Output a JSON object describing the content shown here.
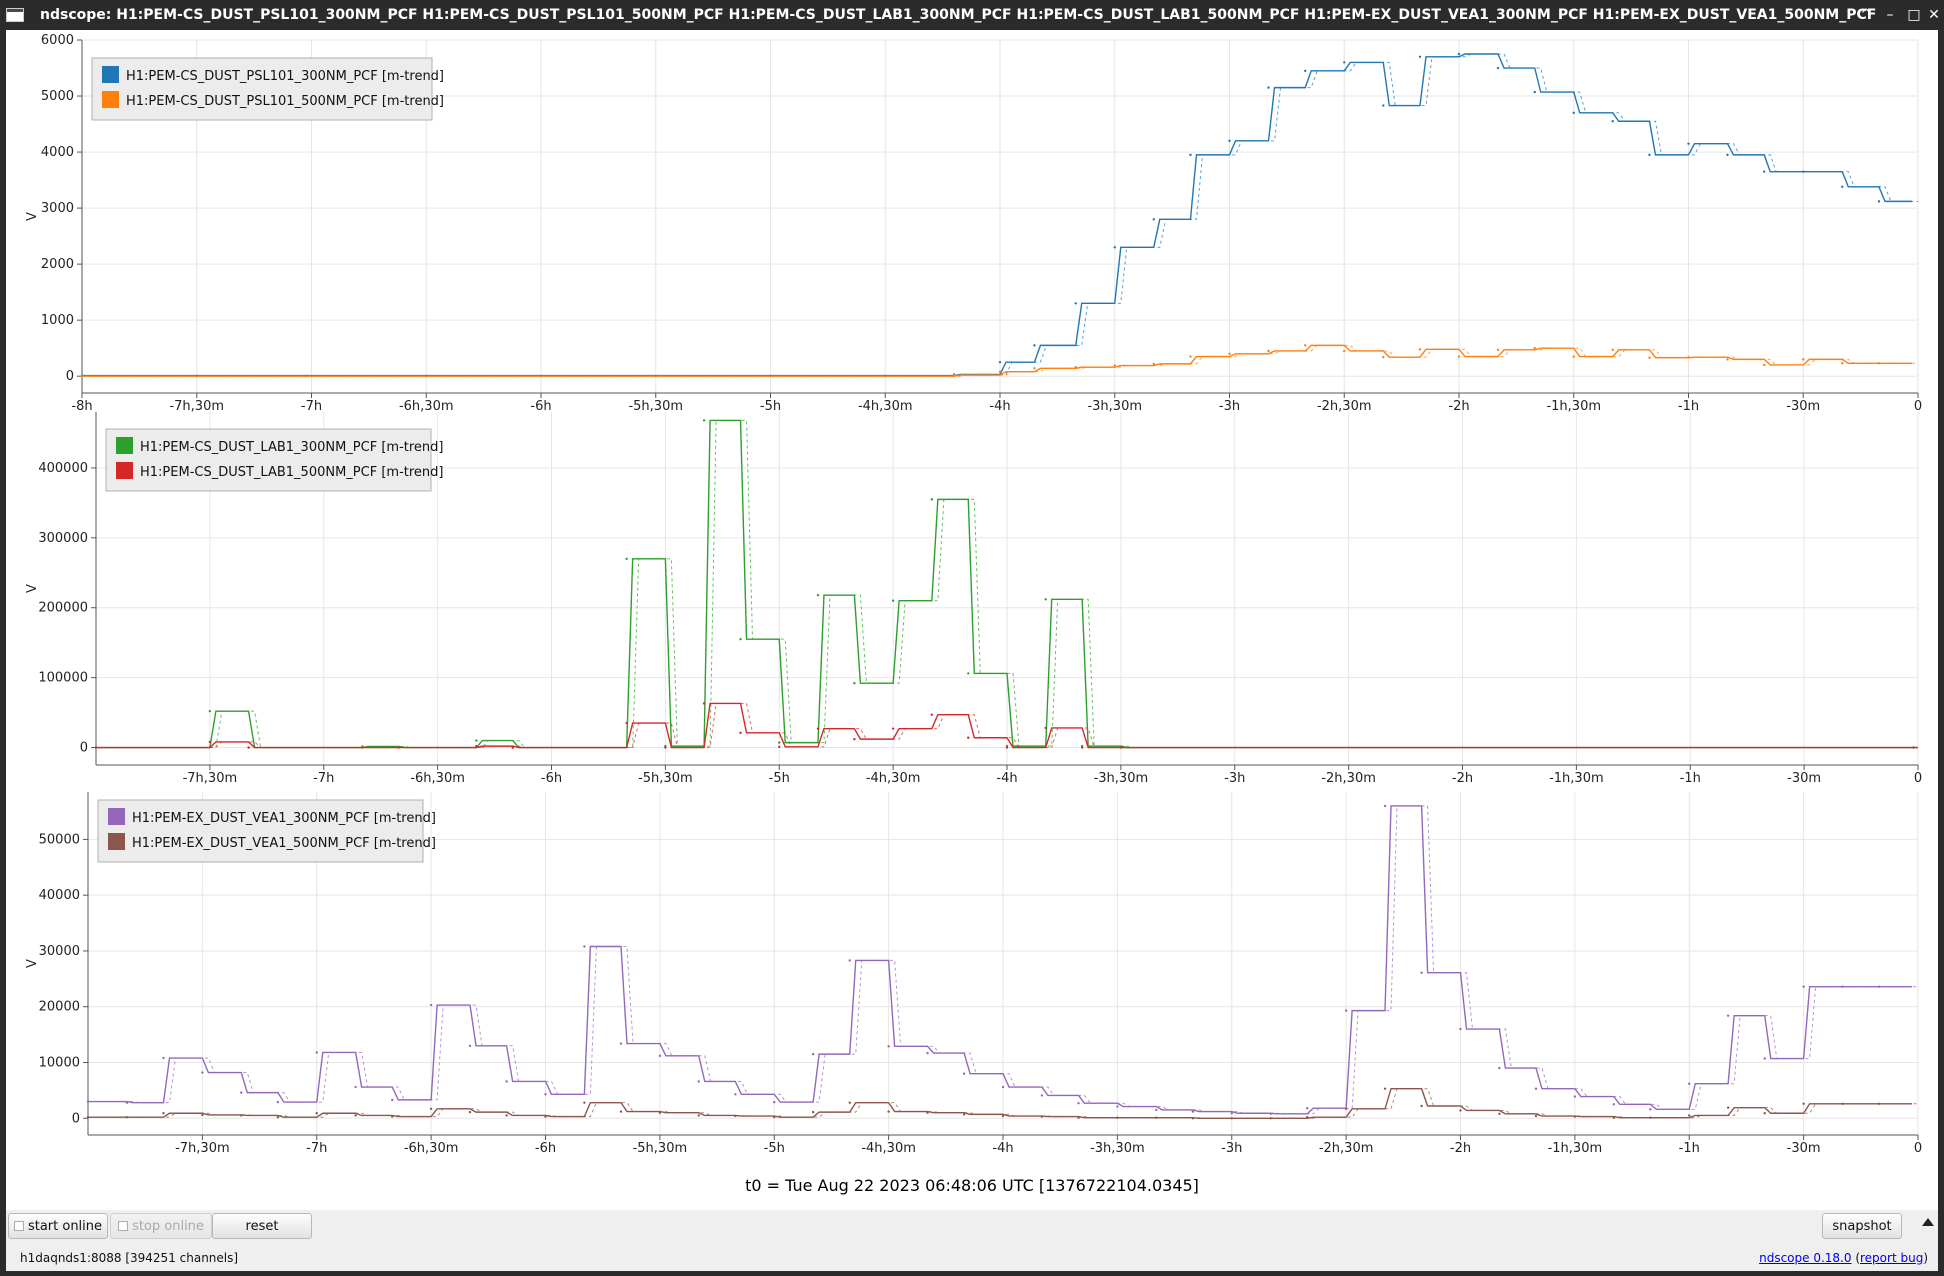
{
  "window": {
    "title": "ndscope: H1:PEM-CS_DUST_PSL101_300NM_PCF H1:PEM-CS_DUST_PSL101_500NM_PCF H1:PEM-CS_DUST_LAB1_300NM_PCF H1:PEM-CS_DUST_LAB1_500NM_PCF H1:PEM-EX_DUST_VEA1_300NM_PCF H1:PEM-EX_DUST_VEA1_500NM_PCF",
    "buttons": [
      "^",
      "–",
      "□",
      "✕"
    ]
  },
  "t0_label": "t0 = Tue Aug 22 2023 06:48:06 UTC [1376722104.0345]",
  "controls": {
    "start_online": "start online",
    "stop_online": "stop online",
    "reset": "reset",
    "snapshot": "snapshot"
  },
  "status": {
    "server": "h1daqnds1:8088  [394251 channels]",
    "version_link": "ndscope 0.18.0",
    "report_bug_link": "report bug"
  },
  "chart_data": [
    {
      "type": "line",
      "ylabel": "V",
      "xlim": [
        -8,
        0
      ],
      "ylim": [
        -300,
        6000
      ],
      "yticks": [
        0,
        1000,
        2000,
        3000,
        4000,
        5000,
        6000
      ],
      "ytick_labels": [
        "0",
        "1000",
        "2000",
        "3000",
        "4000",
        "5000",
        "6000"
      ],
      "xticks": [
        -8,
        -7.5,
        -7,
        -6.5,
        -6,
        -5.5,
        -5,
        -4.5,
        -4,
        -3.5,
        -3,
        -2.5,
        -2,
        -1.5,
        -1,
        -0.5,
        0
      ],
      "xtick_labels": [
        "-8h",
        "-7h,30m",
        "-7h",
        "-6h,30m",
        "-6h",
        "-5h,30m",
        "-5h",
        "-4h,30m",
        "-4h",
        "-3h,30m",
        "-3h",
        "-2h,30m",
        "-2h",
        "-1h,30m",
        "-1h",
        "-30m",
        "0"
      ],
      "grid": true,
      "legend_position": "top-left",
      "series": [
        {
          "name": "H1:PEM-CS_DUST_PSL101_300NM_PCF [m-trend]",
          "color": "#1f77b4",
          "x": [
            -8,
            -4.2,
            -4,
            -3.85,
            -3.67,
            -3.5,
            -3.33,
            -3.17,
            -3,
            -2.83,
            -2.67,
            -2.5,
            -2.33,
            -2.17,
            -2,
            -1.83,
            -1.67,
            -1.5,
            -1.33,
            -1.17,
            -1,
            -0.83,
            -0.67,
            -0.5,
            -0.33,
            -0.17
          ],
          "y": [
            10,
            30,
            250,
            550,
            1300,
            2300,
            2800,
            3950,
            4200,
            5150,
            5450,
            5600,
            4830,
            5700,
            5750,
            5500,
            5070,
            4700,
            4550,
            3950,
            4150,
            3950,
            3650,
            3650,
            3380,
            3120
          ]
        },
        {
          "name": "H1:PEM-CS_DUST_PSL101_500NM_PCF [m-trend]",
          "color": "#ff7f0e",
          "x": [
            -8,
            -4.2,
            -4,
            -3.85,
            -3.67,
            -3.5,
            -3.33,
            -3.17,
            -3,
            -2.83,
            -2.67,
            -2.5,
            -2.33,
            -2.17,
            -2,
            -1.83,
            -1.67,
            -1.5,
            -1.33,
            -1.17,
            -1,
            -0.83,
            -0.67,
            -0.5,
            -0.33,
            -0.17
          ],
          "y": [
            0,
            20,
            80,
            140,
            160,
            190,
            220,
            350,
            400,
            450,
            550,
            450,
            340,
            480,
            350,
            470,
            500,
            350,
            470,
            330,
            340,
            300,
            200,
            300,
            230,
            230
          ]
        }
      ]
    },
    {
      "type": "line",
      "ylabel": "V",
      "xlim": [
        -8,
        0
      ],
      "ylim": [
        -25000,
        480000
      ],
      "yticks": [
        0,
        100000,
        200000,
        300000,
        400000
      ],
      "ytick_labels": [
        "0",
        "100000",
        "200000",
        "300000",
        "400000"
      ],
      "xticks": [
        -7.5,
        -7,
        -6.5,
        -6,
        -5.5,
        -5,
        -4.5,
        -4,
        -3.5,
        -3,
        -2.5,
        -2,
        -1.5,
        -1,
        -0.5,
        0
      ],
      "xtick_labels": [
        "-7h,30m",
        "-7h",
        "-6h,30m",
        "-6h",
        "-5h,30m",
        "-5h",
        "-4h,30m",
        "-4h",
        "-3h,30m",
        "-3h",
        "-2h,30m",
        "-2h",
        "-1h,30m",
        "-1h",
        "-30m",
        "0"
      ],
      "grid": true,
      "legend_position": "top-left",
      "series": [
        {
          "name": "H1:PEM-CS_DUST_LAB1_300NM_PCF [m-trend]",
          "color": "#2ca02c",
          "x": [
            -8,
            -7.5,
            -7.33,
            -6.83,
            -6.67,
            -6.33,
            -6.17,
            -5.67,
            -5.5,
            -5.33,
            -5.17,
            -5,
            -4.83,
            -4.67,
            -4.5,
            -4.33,
            -4.17,
            -4,
            -3.83,
            -3.67,
            -3.5,
            -0.02
          ],
          "y": [
            0,
            52000,
            0,
            1500,
            0,
            10000,
            0,
            270000,
            2000,
            468000,
            155000,
            7000,
            218000,
            92000,
            210000,
            355000,
            106000,
            2000,
            212000,
            2000,
            0,
            0
          ]
        },
        {
          "name": "H1:PEM-CS_DUST_LAB1_500NM_PCF [m-trend]",
          "color": "#d62728",
          "x": [
            -8,
            -7.5,
            -7.33,
            -6.83,
            -6.67,
            -6.33,
            -6.17,
            -5.67,
            -5.5,
            -5.33,
            -5.17,
            -5,
            -4.83,
            -4.67,
            -4.5,
            -4.33,
            -4.17,
            -4,
            -3.83,
            -3.67,
            -3.5,
            -0.02
          ],
          "y": [
            0,
            8000,
            0,
            0,
            0,
            2000,
            0,
            35000,
            0,
            63000,
            21000,
            1000,
            27000,
            12000,
            27000,
            47000,
            14000,
            0,
            28000,
            0,
            0,
            0
          ]
        }
      ]
    },
    {
      "type": "line",
      "ylabel": "V",
      "xlim": [
        -8,
        0
      ],
      "ylim": [
        -3000,
        58500
      ],
      "yticks": [
        0,
        10000,
        20000,
        30000,
        40000,
        50000
      ],
      "ytick_labels": [
        "0",
        "10000",
        "20000",
        "30000",
        "40000",
        "50000"
      ],
      "xticks": [
        -7.5,
        -7,
        -6.5,
        -6,
        -5.5,
        -5,
        -4.5,
        -4,
        -3.5,
        -3,
        -2.5,
        -2,
        -1.5,
        -1,
        -0.5,
        0
      ],
      "xtick_labels": [
        "-7h,30m",
        "-7h",
        "-6h,30m",
        "-6h",
        "-5h,30m",
        "-5h",
        "-4h,30m",
        "-4h",
        "-3h,30m",
        "-3h",
        "-2h,30m",
        "-2h",
        "-1h,30m",
        "-1h",
        "-30m",
        "0"
      ],
      "grid": true,
      "legend_position": "top-left",
      "series": [
        {
          "name": "H1:PEM-EX_DUST_VEA1_300NM_PCF [m-trend]",
          "color": "#9467bd",
          "x": [
            -8,
            -7.83,
            -7.67,
            -7.5,
            -7.33,
            -7.17,
            -7,
            -6.83,
            -6.67,
            -6.5,
            -6.33,
            -6.17,
            -6,
            -5.83,
            -5.67,
            -5.5,
            -5.33,
            -5.17,
            -5,
            -4.83,
            -4.67,
            -4.5,
            -4.33,
            -4.17,
            -4,
            -3.83,
            -3.67,
            -3.5,
            -3.33,
            -3.17,
            -3,
            -2.83,
            -2.67,
            -2.5,
            -2.33,
            -2.17,
            -2,
            -1.83,
            -1.67,
            -1.5,
            -1.33,
            -1.17,
            -1,
            -0.83,
            -0.67,
            -0.5,
            -0.33,
            -0.17
          ],
          "y": [
            3000,
            2800,
            10800,
            8200,
            4600,
            2900,
            11800,
            5600,
            3300,
            20300,
            13000,
            6600,
            4300,
            30800,
            13400,
            11200,
            6600,
            4300,
            2900,
            11500,
            28300,
            12900,
            11700,
            8000,
            5600,
            4100,
            2700,
            2100,
            1500,
            1200,
            900,
            800,
            1800,
            19300,
            56000,
            26100,
            16000,
            9000,
            5300,
            3900,
            2500,
            1600,
            6200,
            18400,
            10700,
            23600,
            23600,
            23600
          ]
        },
        {
          "name": "H1:PEM-EX_DUST_VEA1_500NM_PCF [m-trend]",
          "color": "#8c564b",
          "x": [
            -8,
            -7.83,
            -7.67,
            -7.5,
            -7.33,
            -7.17,
            -7,
            -6.83,
            -6.67,
            -6.5,
            -6.33,
            -6.17,
            -6,
            -5.83,
            -5.67,
            -5.5,
            -5.33,
            -5.17,
            -5,
            -4.83,
            -4.67,
            -4.5,
            -4.33,
            -4.17,
            -4,
            -3.83,
            -3.67,
            -3.5,
            -3.33,
            -3.17,
            -3,
            -2.83,
            -2.67,
            -2.5,
            -2.33,
            -2.17,
            -2,
            -1.83,
            -1.67,
            -1.5,
            -1.33,
            -1.17,
            -1,
            -0.83,
            -0.67,
            -0.5,
            -0.33,
            -0.17
          ],
          "y": [
            200,
            200,
            900,
            600,
            500,
            200,
            900,
            500,
            300,
            1700,
            1100,
            500,
            300,
            2800,
            1200,
            1000,
            500,
            400,
            200,
            1100,
            2800,
            1200,
            1000,
            700,
            400,
            300,
            100,
            100,
            100,
            0,
            0,
            0,
            200,
            1700,
            5300,
            2200,
            1400,
            800,
            400,
            300,
            100,
            100,
            500,
            1900,
            900,
            2600,
            2600,
            2600
          ]
        }
      ]
    }
  ]
}
